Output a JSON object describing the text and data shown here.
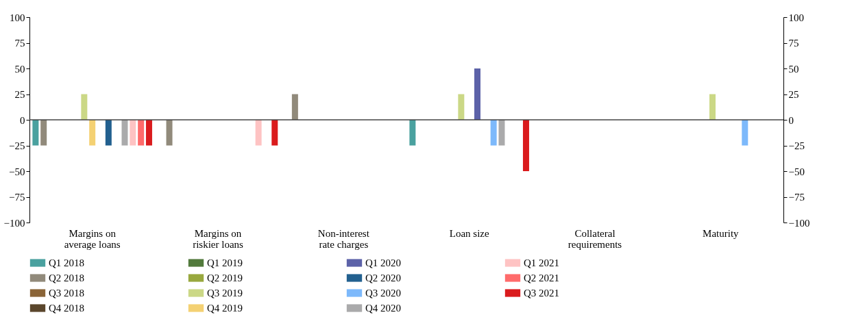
{
  "chart_data": {
    "type": "bar",
    "categories": [
      "Margins on average loans",
      "Margins on riskier loans",
      "Non-interest rate charges",
      "Loan size",
      "Collateral requirements",
      "Maturity"
    ],
    "series": [
      {
        "name": "Q1 2018",
        "color": "#4aa19f",
        "values": [
          -25,
          0,
          0,
          -25,
          0,
          0
        ]
      },
      {
        "name": "Q2 2018",
        "color": "#918a7b",
        "values": [
          -25,
          -25,
          25,
          0,
          0,
          0
        ]
      },
      {
        "name": "Q3 2018",
        "color": "#8a6437",
        "values": [
          0,
          0,
          0,
          0,
          0,
          0
        ]
      },
      {
        "name": "Q4 2018",
        "color": "#5a462c",
        "values": [
          0,
          0,
          0,
          0,
          0,
          0
        ]
      },
      {
        "name": "Q1 2019",
        "color": "#527a3c",
        "values": [
          0,
          0,
          0,
          0,
          0,
          0
        ]
      },
      {
        "name": "Q2 2019",
        "color": "#98a83e",
        "values": [
          0,
          0,
          0,
          0,
          0,
          0
        ]
      },
      {
        "name": "Q3 2019",
        "color": "#cbd886",
        "values": [
          25,
          0,
          0,
          25,
          0,
          25
        ]
      },
      {
        "name": "Q4 2019",
        "color": "#f4d173",
        "values": [
          -25,
          0,
          0,
          0,
          0,
          0
        ]
      },
      {
        "name": "Q1 2020",
        "color": "#5c62a8",
        "values": [
          0,
          0,
          0,
          50,
          0,
          0
        ]
      },
      {
        "name": "Q2 2020",
        "color": "#22608f",
        "values": [
          -25,
          0,
          0,
          0,
          0,
          0
        ]
      },
      {
        "name": "Q3 2020",
        "color": "#7db9fb",
        "values": [
          0,
          0,
          0,
          -25,
          0,
          -25
        ]
      },
      {
        "name": "Q4 2020",
        "color": "#aaaaab",
        "values": [
          -25,
          0,
          0,
          -25,
          0,
          0
        ]
      },
      {
        "name": "Q1 2021",
        "color": "#fec3c3",
        "values": [
          -25,
          -25,
          0,
          0,
          0,
          0
        ]
      },
      {
        "name": "Q2 2021",
        "color": "#ff6b6b",
        "values": [
          -25,
          0,
          0,
          0,
          0,
          0
        ]
      },
      {
        "name": "Q3 2021",
        "color": "#da1b1d",
        "values": [
          -25,
          -25,
          0,
          -50,
          0,
          0
        ]
      }
    ],
    "ylim": [
      -100,
      100
    ],
    "yticks": [
      -100,
      -75,
      -50,
      -25,
      0,
      25,
      50,
      75,
      100
    ],
    "y2lim": [
      -100,
      100
    ],
    "y2ticks": [
      -100,
      -75,
      -50,
      -25,
      0,
      25,
      50,
      75,
      100
    ],
    "ref_lines": [
      {
        "axis": "y",
        "value": 0
      }
    ],
    "grid": false,
    "legend": "bottom"
  }
}
